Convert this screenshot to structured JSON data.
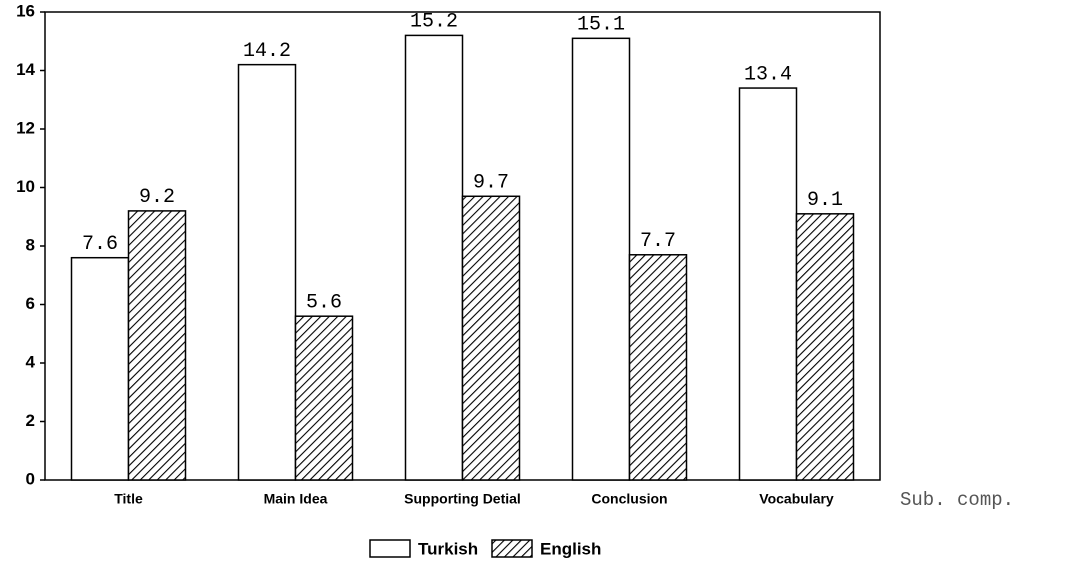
{
  "chart_data": {
    "type": "bar",
    "categories": [
      "Title",
      "Main Idea",
      "Supporting Detial",
      "Conclusion",
      "Vocabulary"
    ],
    "x_label": "Sub. comp.",
    "series": [
      {
        "name": "Turkish",
        "color": "#ffffff",
        "hatch": false,
        "values": [
          7.6,
          14.2,
          15.2,
          15.1,
          13.4
        ]
      },
      {
        "name": "English",
        "color": "#000000",
        "hatch": true,
        "values": [
          9.2,
          5.6,
          9.7,
          7.7,
          9.1
        ]
      }
    ],
    "ylim": [
      0,
      16
    ],
    "yticks": [
      0,
      2,
      4,
      6,
      8,
      10,
      12,
      14,
      16
    ],
    "grid": false,
    "legend": "bottom"
  }
}
